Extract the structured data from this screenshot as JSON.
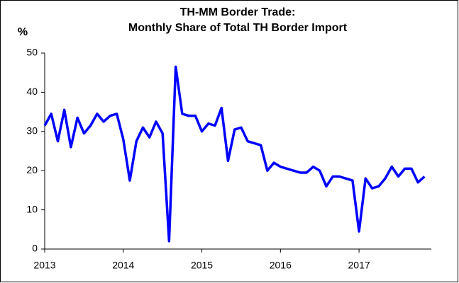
{
  "chart_data": {
    "type": "line",
    "title": "TH-MM Border Trade:",
    "subtitle": "Monthly Share of Total TH Border Import",
    "y_label": "%",
    "x": [
      2013,
      2013.083,
      2013.167,
      2013.25,
      2013.333,
      2013.417,
      2013.5,
      2013.583,
      2013.667,
      2013.75,
      2013.833,
      2013.917,
      2014,
      2014.083,
      2014.167,
      2014.25,
      2014.333,
      2014.417,
      2014.5,
      2014.583,
      2014.667,
      2014.75,
      2014.833,
      2014.917,
      2015,
      2015.083,
      2015.167,
      2015.25,
      2015.333,
      2015.417,
      2015.5,
      2015.583,
      2015.667,
      2015.75,
      2015.833,
      2015.917,
      2016,
      2016.083,
      2016.167,
      2016.25,
      2016.333,
      2016.417,
      2016.5,
      2016.583,
      2016.667,
      2016.75,
      2016.833,
      2016.917,
      2017,
      2017.083,
      2017.167,
      2017.25,
      2017.333,
      2017.417,
      2017.5,
      2017.583,
      2017.667,
      2017.75,
      2017.833
    ],
    "series": [
      {
        "color": "#0000ff",
        "values": [
          31.5,
          34.5,
          27.5,
          35.5,
          26,
          33.5,
          29.5,
          31.5,
          34.5,
          32.5,
          34,
          34.5,
          28,
          17.5,
          27.5,
          31,
          28.5,
          32.5,
          29.5,
          2,
          46.5,
          34.5,
          34,
          34,
          30,
          32,
          31.5,
          36,
          22.5,
          30.5,
          31,
          27.5,
          27,
          26.5,
          20,
          22,
          21,
          20.5,
          20,
          19.5,
          19.5,
          21,
          20,
          16,
          18.5,
          18.5,
          18,
          17.5,
          4.5,
          18,
          15.5,
          16,
          18,
          21,
          18.5,
          20.5,
          20.5,
          17,
          18.5
        ]
      }
    ],
    "xlim": [
      2013,
      2017.92
    ],
    "xticks": [
      2013,
      2014,
      2015,
      2016,
      2017
    ],
    "ylim": [
      0,
      50
    ],
    "yticks": [
      0,
      10,
      20,
      30,
      40,
      50
    ]
  }
}
